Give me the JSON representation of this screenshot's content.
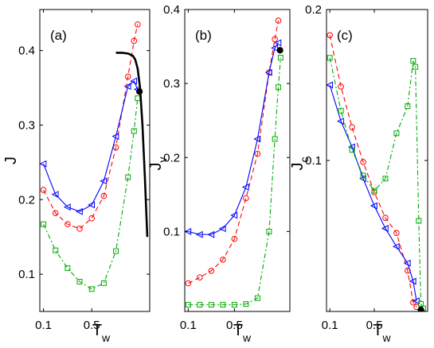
{
  "chart_data": [
    {
      "type": "line",
      "panel_label": "(a)",
      "xlabel": "T",
      "xlabel_sub": "w",
      "ylabel": "J",
      "ylabel_sub": "",
      "xlim": [
        0.07,
        0.98
      ],
      "ylim": [
        0.05,
        0.455
      ],
      "xticks": [
        0.1,
        0.5
      ],
      "xtick_labels": [
        "0.1",
        "0.5"
      ],
      "yticks": [
        0.1,
        0.2,
        0.3,
        0.4
      ],
      "ytick_labels": [
        "0.1",
        "0.2",
        "0.3",
        "0.4"
      ],
      "grid": false,
      "series": [
        {
          "color": "#ff0000",
          "dash": "6,4",
          "marker": "circle",
          "x": [
            0.1,
            0.2,
            0.3,
            0.4,
            0.5,
            0.6,
            0.7,
            0.8,
            0.85,
            0.88
          ],
          "y": [
            0.213,
            0.182,
            0.167,
            0.161,
            0.175,
            0.205,
            0.27,
            0.365,
            0.413,
            0.435
          ]
        },
        {
          "color": "#0000ff",
          "dash": "",
          "marker": "triangle-left",
          "x": [
            0.1,
            0.2,
            0.3,
            0.4,
            0.5,
            0.6,
            0.7,
            0.8,
            0.85,
            0.88
          ],
          "y": [
            0.248,
            0.207,
            0.19,
            0.184,
            0.193,
            0.225,
            0.285,
            0.352,
            0.359,
            0.348
          ]
        },
        {
          "color": "#00aa00",
          "dash": "6,3,2,3",
          "marker": "square",
          "x": [
            0.1,
            0.2,
            0.3,
            0.4,
            0.5,
            0.6,
            0.7,
            0.8,
            0.85,
            0.88
          ],
          "y": [
            0.167,
            0.132,
            0.108,
            0.09,
            0.08,
            0.088,
            0.131,
            0.23,
            0.292,
            0.336
          ]
        },
        {
          "color": "#000000",
          "dash": "",
          "marker": "none",
          "width": 2.6,
          "x": [
            0.7,
            0.75,
            0.8,
            0.84,
            0.86,
            0.88,
            0.9,
            0.92,
            0.94,
            0.96
          ],
          "y": [
            0.397,
            0.397,
            0.396,
            0.393,
            0.388,
            0.376,
            0.35,
            0.3,
            0.23,
            0.15
          ]
        }
      ],
      "points": [
        {
          "x": 0.895,
          "y": 0.345,
          "color": "#000000"
        }
      ]
    },
    {
      "type": "line",
      "panel_label": "(b)",
      "xlabel": "T",
      "xlabel_sub": "w",
      "ylabel": "J",
      "ylabel_sub": "v",
      "xlim": [
        0.07,
        0.98
      ],
      "ylim": [
        -0.008,
        0.4
      ],
      "xticks": [
        0.1,
        0.5
      ],
      "xtick_labels": [
        "0.1",
        "0.5"
      ],
      "yticks": [
        0.1,
        0.2,
        0.3,
        0.4
      ],
      "ytick_labels": [
        "0.1",
        "0.2",
        "0.3",
        "0.4"
      ],
      "grid": false,
      "series": [
        {
          "color": "#ff0000",
          "dash": "6,4",
          "marker": "circle",
          "x": [
            0.1,
            0.2,
            0.3,
            0.4,
            0.5,
            0.6,
            0.7,
            0.8,
            0.85,
            0.88
          ],
          "y": [
            0.03,
            0.038,
            0.047,
            0.062,
            0.09,
            0.145,
            0.205,
            0.315,
            0.36,
            0.385
          ]
        },
        {
          "color": "#0000ff",
          "dash": "",
          "marker": "triangle-left",
          "x": [
            0.1,
            0.2,
            0.3,
            0.4,
            0.5,
            0.6,
            0.7,
            0.8,
            0.85,
            0.88
          ],
          "y": [
            0.1,
            0.096,
            0.096,
            0.104,
            0.122,
            0.16,
            0.225,
            0.315,
            0.348,
            0.355
          ]
        },
        {
          "color": "#00aa00",
          "dash": "6,3,2,3",
          "marker": "square",
          "x": [
            0.1,
            0.2,
            0.3,
            0.4,
            0.5,
            0.6,
            0.7,
            0.8,
            0.85,
            0.88,
            0.9
          ],
          "y": [
            0.001,
            0.001,
            0.001,
            0.001,
            0.001,
            0.002,
            0.01,
            0.1,
            0.225,
            0.295,
            0.335
          ]
        }
      ],
      "points": [
        {
          "x": 0.895,
          "y": 0.345,
          "color": "#000000"
        }
      ]
    },
    {
      "type": "line",
      "panel_label": "(c)",
      "xlabel": "T",
      "xlabel_sub": "w",
      "ylabel": "J",
      "ylabel_sub": "c",
      "xlim": [
        0.07,
        0.98
      ],
      "ylim": [
        0.0,
        0.2
      ],
      "xticks": [
        0.1,
        0.5
      ],
      "xtick_labels": [
        "0.1",
        "0.5"
      ],
      "yticks": [
        0.1,
        0.2
      ],
      "ytick_labels": [
        "0.1",
        "0.2"
      ],
      "grid": false,
      "series": [
        {
          "color": "#ff0000",
          "dash": "6,4",
          "marker": "circle",
          "x": [
            0.1,
            0.2,
            0.3,
            0.4,
            0.5,
            0.6,
            0.7,
            0.8,
            0.85,
            0.88
          ],
          "y": [
            0.183,
            0.149,
            0.122,
            0.099,
            0.079,
            0.062,
            0.052,
            0.027,
            0.006,
            0.003
          ]
        },
        {
          "color": "#0000ff",
          "dash": "",
          "marker": "triangle-left",
          "x": [
            0.1,
            0.2,
            0.3,
            0.4,
            0.5,
            0.6,
            0.7,
            0.8,
            0.85,
            0.88
          ],
          "y": [
            0.15,
            0.126,
            0.109,
            0.088,
            0.07,
            0.055,
            0.043,
            0.032,
            0.02,
            0.007
          ]
        },
        {
          "color": "#00aa00",
          "dash": "6,3,2,3",
          "marker": "square",
          "x": [
            0.1,
            0.2,
            0.3,
            0.4,
            0.5,
            0.6,
            0.7,
            0.8,
            0.85,
            0.87,
            0.9,
            0.92,
            0.94
          ],
          "y": [
            0.168,
            0.133,
            0.107,
            0.09,
            0.08,
            0.088,
            0.118,
            0.136,
            0.166,
            0.162,
            0.06,
            0.005,
            0.002
          ]
        }
      ],
      "points": [
        {
          "x": 0.92,
          "y": 0.001,
          "color": "#000000"
        }
      ]
    }
  ]
}
